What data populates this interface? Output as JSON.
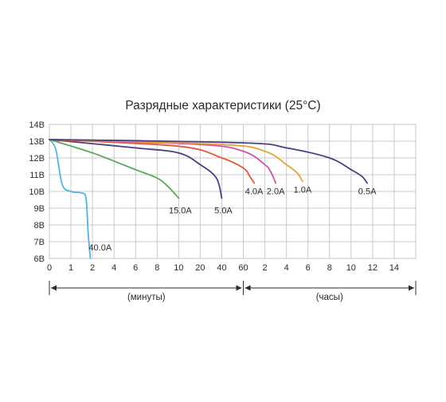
{
  "chart_data": {
    "type": "line",
    "title": "Разрядные характеристики (25°C)",
    "y_ticks": [
      "14В",
      "13В",
      "12В",
      "11В",
      "10В",
      "9В",
      "8В",
      "7В",
      "6В"
    ],
    "ylim": [
      6,
      14
    ],
    "grid": true,
    "x_ticks": [
      "0",
      "1",
      "2",
      "4",
      "6",
      "8",
      "10",
      "20",
      "40",
      "60",
      "2",
      "4",
      "6",
      "8",
      "10",
      "12",
      "14"
    ],
    "x_sections": [
      {
        "label": "(минуты)",
        "from": "0",
        "to": "60"
      },
      {
        "label": "(часы)",
        "from": "60",
        "to": "14"
      }
    ],
    "series": [
      {
        "name": "40.0A",
        "color": "#52b6db",
        "points": [
          {
            "t": "0 мин",
            "v": 13.1
          },
          {
            "t": "0.3 мин",
            "v": 12.5
          },
          {
            "t": "0.6 мин",
            "v": 10.4
          },
          {
            "t": "1 мин",
            "v": 10.0
          },
          {
            "t": "1.5 мин",
            "v": 9.9
          },
          {
            "t": "1.7 мин",
            "v": 9.6
          },
          {
            "t": "1.8 мин",
            "v": 7.5
          },
          {
            "t": "1.9 мин",
            "v": 6.0
          }
        ]
      },
      {
        "name": "15.0A",
        "color": "#5ca85a",
        "points": [
          {
            "t": "0 мин",
            "v": 13.1
          },
          {
            "t": "2 мин",
            "v": 12.3
          },
          {
            "t": "6 мин",
            "v": 11.3
          },
          {
            "t": "8 мин",
            "v": 10.8
          },
          {
            "t": "9 мин",
            "v": 10.3
          },
          {
            "t": "10 мин",
            "v": 9.6
          }
        ]
      },
      {
        "name": "5.0A",
        "color": "#4a3f80",
        "points": [
          {
            "t": "0 мин",
            "v": 13.1
          },
          {
            "t": "6 мин",
            "v": 12.6
          },
          {
            "t": "10 мин",
            "v": 12.3
          },
          {
            "t": "20 мин",
            "v": 11.6
          },
          {
            "t": "35 мин",
            "v": 10.8
          },
          {
            "t": "40 мин",
            "v": 9.6
          }
        ]
      },
      {
        "name": "4.0A",
        "color": "#e05a3a",
        "points": [
          {
            "t": "0 мин",
            "v": 13.1
          },
          {
            "t": "10 мин",
            "v": 12.7
          },
          {
            "t": "40 мин",
            "v": 12.0
          },
          {
            "t": "60 мин",
            "v": 11.4
          },
          {
            "t": "1.3 ч",
            "v": 10.9
          },
          {
            "t": "1.5 ч",
            "v": 10.5
          }
        ]
      },
      {
        "name": "2.0A",
        "color": "#d44fa8",
        "points": [
          {
            "t": "0 мин",
            "v": 13.1
          },
          {
            "t": "20 мин",
            "v": 12.8
          },
          {
            "t": "60 мин",
            "v": 12.4
          },
          {
            "t": "2 ч",
            "v": 11.6
          },
          {
            "t": "2.6 ч",
            "v": 11.1
          },
          {
            "t": "3 ч",
            "v": 10.5
          }
        ]
      },
      {
        "name": "1.0A",
        "color": "#e8a23a",
        "points": [
          {
            "t": "0 мин",
            "v": 13.1
          },
          {
            "t": "40 мин",
            "v": 12.8
          },
          {
            "t": "2 ч",
            "v": 12.4
          },
          {
            "t": "4 ч",
            "v": 11.6
          },
          {
            "t": "5 ч",
            "v": 11.1
          },
          {
            "t": "5.5 ч",
            "v": 10.6
          }
        ]
      },
      {
        "name": "0.5A",
        "color": "#4a3f80",
        "points": [
          {
            "t": "0 мин",
            "v": 13.1
          },
          {
            "t": "60 мин",
            "v": 12.9
          },
          {
            "t": "4 ч",
            "v": 12.6
          },
          {
            "t": "8 ч",
            "v": 12.0
          },
          {
            "t": "10 ч",
            "v": 11.3
          },
          {
            "t": "11 ч",
            "v": 10.9
          },
          {
            "t": "11.5 ч",
            "v": 10.5
          }
        ]
      }
    ]
  }
}
